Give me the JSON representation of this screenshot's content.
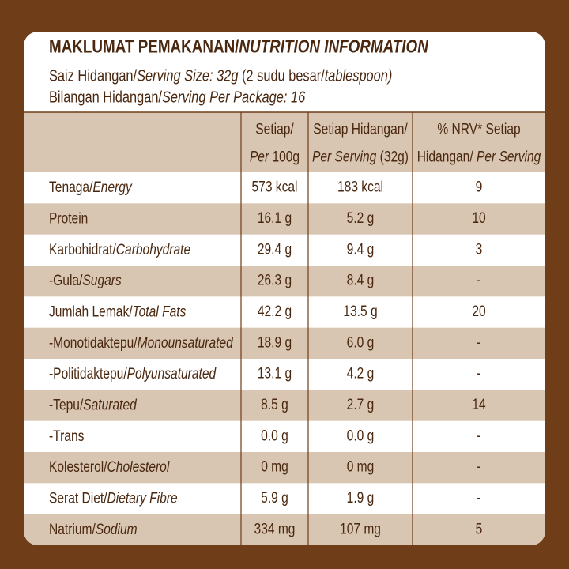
{
  "header": {
    "title": [
      {
        "text": "MAKLUMAT PEMAKANAN/"
      },
      {
        "text": "NUTRITION INFORMATION",
        "italic": true
      }
    ],
    "serving_size": [
      {
        "text": "Saiz Hidangan/"
      },
      {
        "text": "Serving Size: 32g",
        "italic": true
      },
      {
        "text": " (2 sudu besar/"
      },
      {
        "text": "tablespoon)",
        "italic": true
      }
    ],
    "servings_per_package": [
      {
        "text": "Bilangan Hidangan/"
      },
      {
        "text": "Serving Per Package: 16",
        "italic": true
      }
    ]
  },
  "table": {
    "columns": [
      [
        [
          {
            "text": "Setiap/"
          }
        ],
        [
          {
            "text": "Per",
            "italic": true
          },
          {
            "text": " 100g"
          }
        ]
      ],
      [
        [
          {
            "text": "Setiap Hidangan/"
          }
        ],
        [
          {
            "text": "Per Serving",
            "italic": true
          },
          {
            "text": " (32g)"
          }
        ]
      ],
      [
        [
          {
            "text": "% NRV* Setiap"
          }
        ],
        [
          {
            "text": "Hidangan/ "
          },
          {
            "text": "Per Serving",
            "italic": true
          }
        ]
      ]
    ],
    "rows": [
      {
        "label": [
          {
            "text": "Tenaga/"
          },
          {
            "text": "Energy",
            "italic": true
          }
        ],
        "values": [
          "573 kcal",
          "183 kcal",
          "9"
        ]
      },
      {
        "label": [
          {
            "text": "Protein"
          }
        ],
        "values": [
          "16.1 g",
          "5.2 g",
          "10"
        ]
      },
      {
        "label": [
          {
            "text": "Karbohidrat/"
          },
          {
            "text": "Carbohydrate",
            "italic": true
          }
        ],
        "values": [
          "29.4 g",
          "9.4 g",
          "3"
        ]
      },
      {
        "label": [
          {
            "text": "-Gula/"
          },
          {
            "text": "Sugars",
            "italic": true
          }
        ],
        "values": [
          "26.3 g",
          "8.4 g",
          "-"
        ]
      },
      {
        "label": [
          {
            "text": "Jumlah Lemak/"
          },
          {
            "text": "Total Fats",
            "italic": true
          }
        ],
        "values": [
          "42.2 g",
          "13.5 g",
          "20"
        ]
      },
      {
        "label": [
          {
            "text": "-Monotidaktepu/"
          },
          {
            "text": "Monounsaturated",
            "italic": true
          }
        ],
        "values": [
          "18.9 g",
          "6.0 g",
          "-"
        ]
      },
      {
        "label": [
          {
            "text": "-Politidaktepu/"
          },
          {
            "text": "Polyunsaturated",
            "italic": true
          }
        ],
        "values": [
          "13.1 g",
          "4.2 g",
          "-"
        ]
      },
      {
        "label": [
          {
            "text": "-Tepu/"
          },
          {
            "text": "Saturated",
            "italic": true
          }
        ],
        "values": [
          "8.5 g",
          "2.7 g",
          "14"
        ]
      },
      {
        "label": [
          {
            "text": "-Trans"
          }
        ],
        "values": [
          "0.0 g",
          "0.0 g",
          "-"
        ]
      },
      {
        "label": [
          {
            "text": "Kolesterol/"
          },
          {
            "text": "Cholesterol",
            "italic": true
          }
        ],
        "values": [
          "0 mg",
          "0 mg",
          "-"
        ]
      },
      {
        "label": [
          {
            "text": "Serat Diet/"
          },
          {
            "text": "Dietary Fibre",
            "italic": true
          }
        ],
        "values": [
          "5.9 g",
          "1.9 g",
          "-"
        ]
      },
      {
        "label": [
          {
            "text": "Natrium/"
          },
          {
            "text": "Sodium",
            "italic": true
          }
        ],
        "values": [
          "334 mg",
          "107 mg",
          "5"
        ]
      }
    ]
  }
}
